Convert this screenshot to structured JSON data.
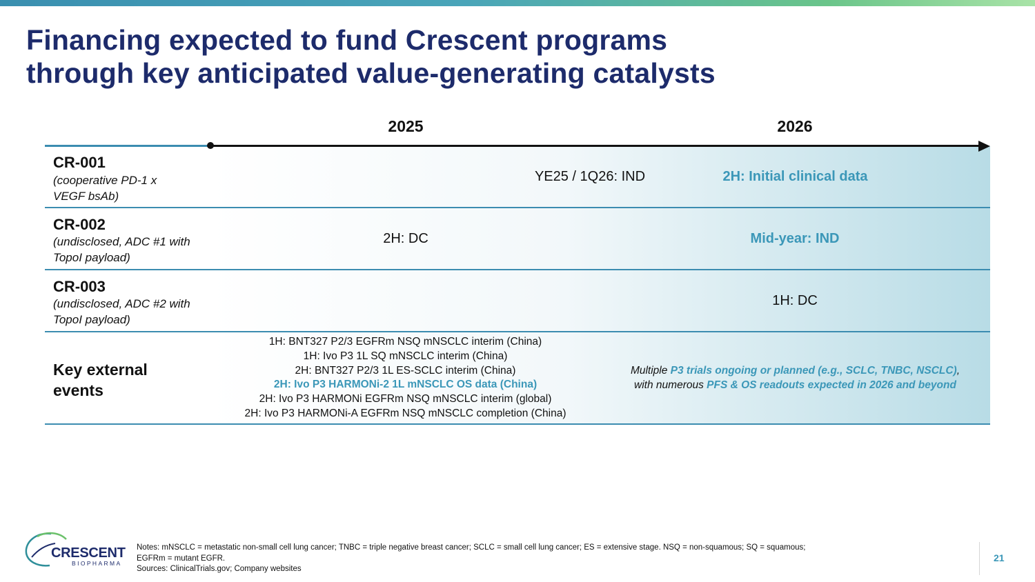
{
  "title": {
    "line1": "Financing expected to fund Crescent programs",
    "line2": "through key anticipated value-generating catalysts"
  },
  "timeline": {
    "years": [
      "2025",
      "2026"
    ]
  },
  "rows": [
    {
      "name": "CR-001",
      "sub1": "(cooperative PD-1 x",
      "sub2": "VEGF bsAb)",
      "y2025": "",
      "mid": "YE25 / 1Q26: IND",
      "y2026": "2H: Initial clinical data"
    },
    {
      "name": "CR-002",
      "sub1": "(undisclosed, ADC #1 with",
      "sub2": "TopoI payload)",
      "y2025": "2H: DC",
      "y2026": "Mid-year: IND"
    },
    {
      "name": "CR-003",
      "sub1": "(undisclosed, ADC #2 with",
      "sub2": "TopoI payload)",
      "y2025": "",
      "y2026": "1H: DC"
    }
  ],
  "external": {
    "label_line1": "Key external",
    "label_line2": "events",
    "events_2025": [
      "1H: BNT327 P2/3 EGFRm NSQ mNSCLC interim (China)",
      "1H: Ivo P3 1L SQ mNSCLC interim (China)",
      "2H: BNT327 P2/3 1L ES-SCLC interim (China)",
      "2H: Ivo P3 HARMONi-2 1L mNSCLC OS data (China)",
      "2H: Ivo P3 HARMONi EGFRm NSQ mNSCLC interim (global)",
      "2H: Ivo P3 HARMONi-A EGFRm NSQ mNSCLC completion (China)"
    ],
    "highlighted_index": 3,
    "y2026": {
      "p1": "Multiple ",
      "p2": "P3 trials ongoing or planned (e.g., SCLC, TNBC, NSCLC)",
      "p3": ",",
      "p4": "with numerous ",
      "p5": "PFS & OS readouts expected in 2026 and beyond"
    }
  },
  "logo": {
    "name": "CRESCENT",
    "sub": "BIOPHARMA"
  },
  "notes": {
    "line1": "Notes: mNSCLC = metastatic non-small cell lung cancer; TNBC = triple negative breast cancer; SCLC = small cell lung cancer; ES = extensive stage. NSQ = non-squamous; SQ = squamous; EGFRm = mutant EGFR.",
    "line2": "Sources: ClinicalTrials.gov; Company websites"
  },
  "page_number": "21",
  "colors": {
    "title": "#1d2b6b",
    "accent": "#3b97b8",
    "rule": "#3b8cb0"
  }
}
